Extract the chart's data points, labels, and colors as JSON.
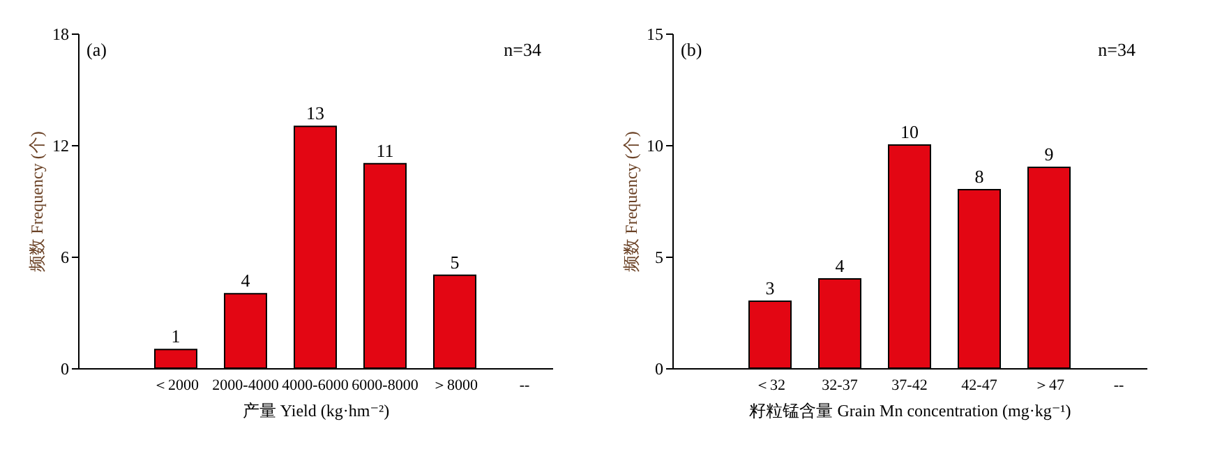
{
  "chart_data": [
    {
      "type": "bar",
      "xlabel": "产量 Yield (kg·hm⁻²)",
      "ylabel": "频数 Frequency (个)",
      "categories": [
        null,
        "＜2000",
        "2000-4000",
        "4000-6000",
        "6000-8000",
        "＞8000",
        "--"
      ],
      "values": [
        null,
        1,
        4,
        13,
        11,
        5,
        null
      ],
      "color": "#e30613",
      "ylim": [
        0,
        18
      ],
      "yticks": [
        0,
        6,
        12,
        18
      ],
      "data_labels": true,
      "annotations": [
        "(a)",
        "n=34"
      ]
    },
    {
      "type": "bar",
      "xlabel": "籽粒锰含量 Grain Mn concentration (mg·kg⁻¹)",
      "ylabel": "频数 Frequency (个)",
      "categories": [
        null,
        "＜32",
        "32-37",
        "37-42",
        "42-47",
        "＞47",
        "--"
      ],
      "values": [
        null,
        3,
        4,
        10,
        8,
        9,
        null
      ],
      "color": "#e30613",
      "ylim": [
        0,
        15
      ],
      "yticks": [
        0,
        5,
        10,
        15
      ],
      "data_labels": true,
      "annotations": [
        "(b)",
        "n=34"
      ]
    }
  ]
}
